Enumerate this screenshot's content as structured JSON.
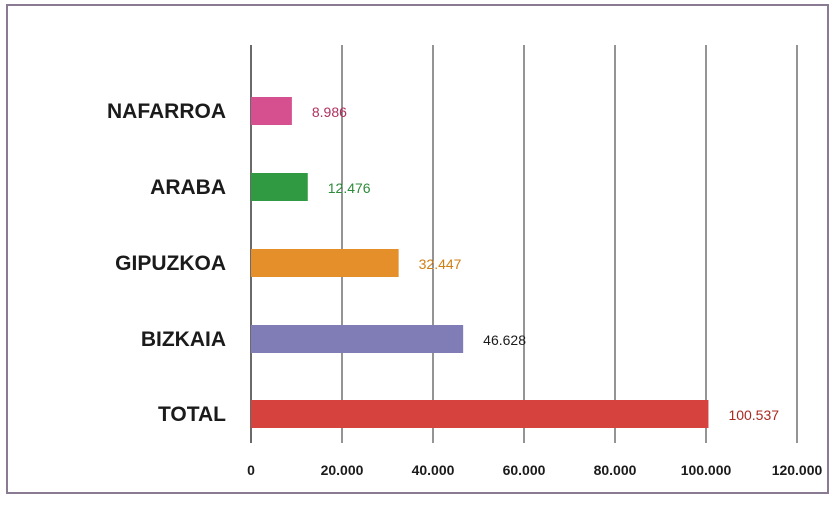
{
  "chart_data": {
    "type": "bar",
    "orientation": "horizontal",
    "categories": [
      "NAFARROA",
      "ARABA",
      "GIPUZKOA",
      "BIZKAIA",
      "TOTAL"
    ],
    "values": [
      8986,
      12476,
      32447,
      46628,
      100537
    ],
    "value_labels": [
      "8.986",
      "12.476",
      "32.447",
      "46.628",
      "100.537"
    ],
    "colors": [
      "#d6508f",
      "#2f9a42",
      "#e58f2a",
      "#7f7cb6",
      "#d6423d"
    ],
    "label_colors": [
      "#b0305f",
      "#2d8a3a",
      "#d07f15",
      "#1b1b1b",
      "#a82a22"
    ],
    "xlim": [
      0,
      120000
    ],
    "x_ticks": [
      0,
      20000,
      40000,
      60000,
      80000,
      100000,
      120000
    ],
    "x_tick_labels": [
      "0",
      "20.000",
      "40.000",
      "60.000",
      "80.000",
      "100.000",
      "120.000"
    ],
    "grid": true,
    "title": "",
    "xlabel": "",
    "ylabel": ""
  }
}
